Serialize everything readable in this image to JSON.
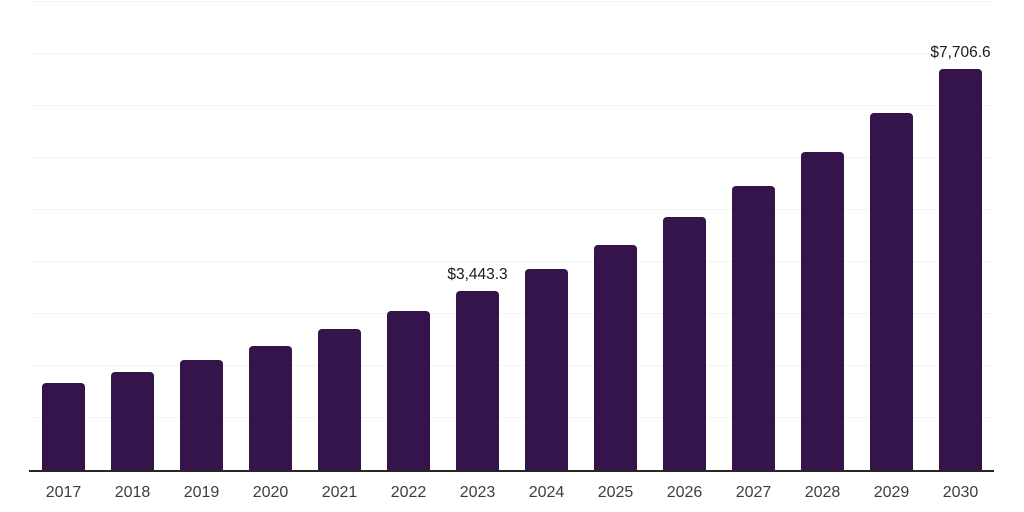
{
  "chart_data": {
    "type": "bar",
    "title": "",
    "categories": [
      "2017",
      "2018",
      "2019",
      "2020",
      "2021",
      "2022",
      "2023",
      "2024",
      "2025",
      "2026",
      "2027",
      "2028",
      "2029",
      "2030"
    ],
    "values": [
      1680,
      1885,
      2110,
      2380,
      2705,
      3055,
      3443.3,
      3865,
      4335,
      4865,
      5455,
      6120,
      6870,
      7706.6
    ],
    "data_labels": [
      "",
      "",
      "",
      "",
      "",
      "",
      "$3,443.3",
      "",
      "",
      "",
      "",
      "",
      "",
      "$7,706.6"
    ],
    "xlabel": "",
    "ylabel": "",
    "ylim": [
      0,
      9000
    ],
    "gridline_step": 1000,
    "grid": "horizontal-only",
    "legend": "none",
    "y_tick_labels_visible": false,
    "colors": {
      "bar": "#35134B",
      "gridline": "#f3f3f3",
      "axis_line": "#262626",
      "data_label": "#1a1a1a",
      "tick_label": "#3d3d3d",
      "background": "#ffffff"
    }
  }
}
